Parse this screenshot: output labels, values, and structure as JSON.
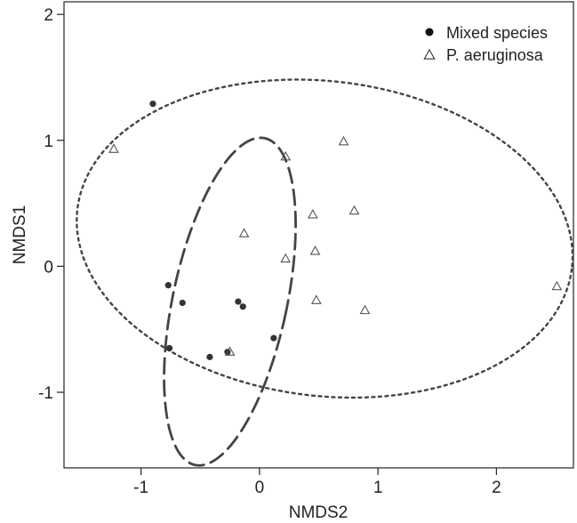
{
  "chart_data": {
    "type": "scatter",
    "title": "",
    "xlabel": "NMDS2",
    "ylabel": "NMDS1",
    "xlim": [
      -1.65,
      2.65
    ],
    "ylim": [
      -1.6,
      2.1
    ],
    "x_ticks": [
      -1,
      0,
      1,
      2
    ],
    "y_ticks": [
      -1,
      0,
      1,
      2
    ],
    "x_tick_labels": [
      "-1",
      "0",
      "1",
      "2"
    ],
    "y_tick_labels": [
      "-1",
      "0",
      "1",
      "2"
    ],
    "grid": false,
    "legend_position": "top-right",
    "series": [
      {
        "name": "Mixed species",
        "marker": "filled-circle",
        "color": "#333333",
        "points": [
          {
            "x": -0.9,
            "y": 1.29
          },
          {
            "x": -0.77,
            "y": -0.15
          },
          {
            "x": -0.65,
            "y": -0.29
          },
          {
            "x": -0.76,
            "y": -0.65
          },
          {
            "x": -0.42,
            "y": -0.72
          },
          {
            "x": -0.27,
            "y": -0.68
          },
          {
            "x": -0.18,
            "y": -0.28
          },
          {
            "x": -0.14,
            "y": -0.32
          },
          {
            "x": 0.12,
            "y": -0.57
          }
        ],
        "ellipse": {
          "cx": -0.25,
          "cy": -0.28,
          "rx": 0.48,
          "ry": 1.33,
          "angle_deg": -13,
          "line": "long-dash",
          "color": "#444444"
        }
      },
      {
        "name": "P. aeruginosa",
        "marker": "open-triangle",
        "color": "#555555",
        "points": [
          {
            "x": -1.23,
            "y": 0.93
          },
          {
            "x": -0.13,
            "y": 0.26
          },
          {
            "x": 0.22,
            "y": 0.87
          },
          {
            "x": 0.71,
            "y": 0.99
          },
          {
            "x": 0.45,
            "y": 0.41
          },
          {
            "x": 0.8,
            "y": 0.44
          },
          {
            "x": 0.22,
            "y": 0.06
          },
          {
            "x": 0.47,
            "y": 0.12
          },
          {
            "x": 0.48,
            "y": -0.27
          },
          {
            "x": 0.89,
            "y": -0.35
          },
          {
            "x": -0.25,
            "y": -0.68
          },
          {
            "x": 2.51,
            "y": -0.16
          }
        ],
        "ellipse": {
          "cx": 0.55,
          "cy": 0.22,
          "rx": 2.1,
          "ry": 1.25,
          "angle_deg": -6,
          "line": "dotted",
          "color": "#444444"
        }
      }
    ]
  }
}
